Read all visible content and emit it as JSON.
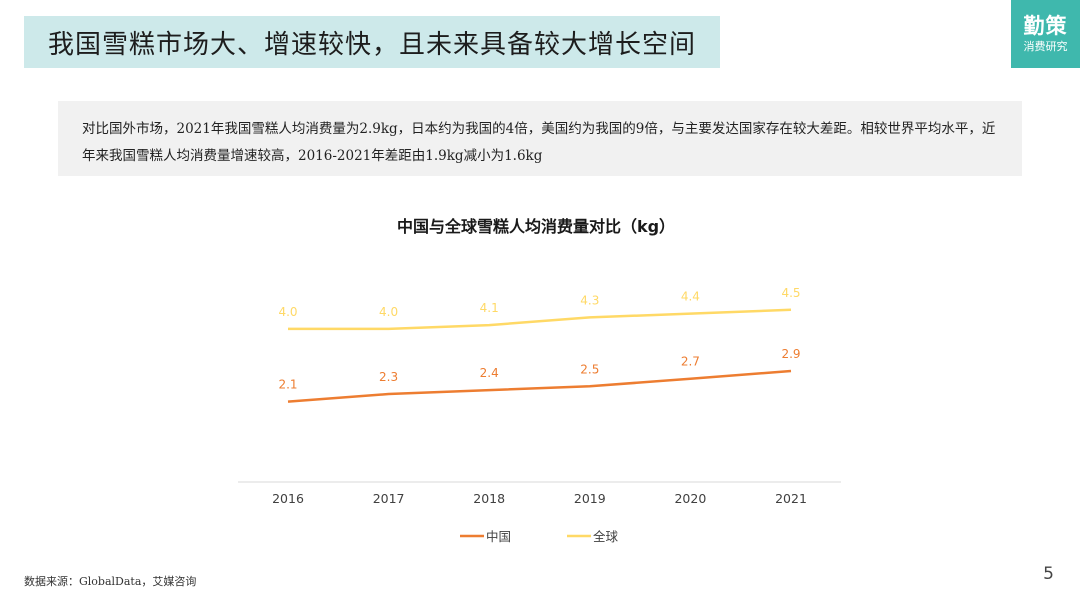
{
  "header": {
    "title": "我国雪糕市场大、增速较快，且未来具备较大增长空间",
    "logo_main": "勤策",
    "logo_sub": "消费研究"
  },
  "summary": {
    "text": "对比国外市场，2021年我国雪糕人均消费量为2.9kg，日本约为我国的4倍，美国约为我国的9倍，与主要发达国家存在较大差距。相较世界平均水平，近年来我国雪糕人均消费量增速较高，2016-2021年差距由1.9kg减小为1.6kg"
  },
  "chart_data": {
    "type": "line",
    "title": "中国与全球雪糕人均消费量对比（kg）",
    "xlabel": "",
    "ylabel": "",
    "categories": [
      "2016",
      "2017",
      "2018",
      "2019",
      "2020",
      "2021"
    ],
    "series": [
      {
        "name": "中国",
        "color": "#ed7d31",
        "values": [
          2.1,
          2.3,
          2.4,
          2.5,
          2.7,
          2.9
        ],
        "labels": [
          "2.1",
          "2.3",
          "2.4",
          "2.5",
          "2.7",
          "2.9"
        ]
      },
      {
        "name": "全球",
        "color": "#ffd966",
        "values": [
          4.0,
          4.0,
          4.1,
          4.3,
          4.4,
          4.5
        ],
        "labels": [
          "4.0",
          "4.0",
          "4.1",
          "4.3",
          "4.4",
          "4.5"
        ]
      }
    ],
    "ylim": [
      0,
      5.8
    ],
    "grid": false,
    "legend": "bottom"
  },
  "footer": {
    "source": "数据来源：GlobalData，艾媒咨询",
    "page": "5"
  }
}
